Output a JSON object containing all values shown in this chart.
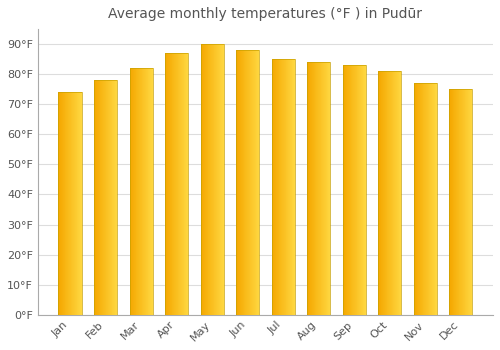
{
  "title": "Average monthly temperatures (°F ) in Pudūr",
  "months": [
    "Jan",
    "Feb",
    "Mar",
    "Apr",
    "May",
    "Jun",
    "Jul",
    "Aug",
    "Sep",
    "Oct",
    "Nov",
    "Dec"
  ],
  "values": [
    74,
    78,
    82,
    87,
    90,
    88,
    85,
    84,
    83,
    81,
    77,
    75
  ],
  "bar_color_left": "#F5A800",
  "bar_color_right": "#FFD740",
  "bar_edge_color": "#C8A000",
  "background_color": "#FFFFFF",
  "grid_color": "#DDDDDD",
  "ylim": [
    0,
    95
  ],
  "yticks": [
    0,
    10,
    20,
    30,
    40,
    50,
    60,
    70,
    80,
    90
  ],
  "ytick_labels": [
    "0°F",
    "10°F",
    "20°F",
    "30°F",
    "40°F",
    "50°F",
    "60°F",
    "70°F",
    "80°F",
    "90°F"
  ],
  "title_fontsize": 10,
  "tick_fontsize": 8,
  "bar_width": 0.65,
  "text_color": "#555555"
}
